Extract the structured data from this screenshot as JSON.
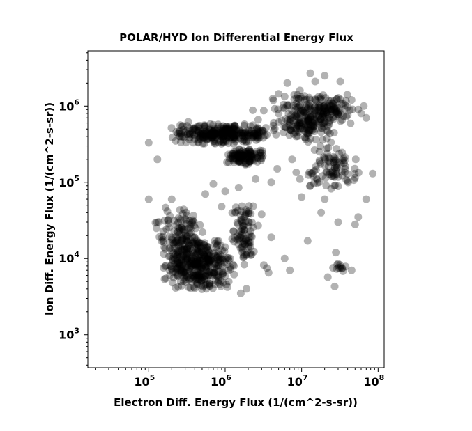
{
  "chart_data": {
    "type": "scatter",
    "title": "POLAR/HYD  Ion Differential Energy Flux",
    "xlabel": "Electron Diff. Energy Flux (1/(cm^2-s-sr))",
    "ylabel": "Ion Diff. Energy Flux (1/(cm^2-s-sr))",
    "xscale": "log",
    "yscale": "log",
    "xlim": [
      16000,
      120000000
    ],
    "ylim": [
      370,
      5300000
    ],
    "x_ticks": [
      {
        "base": "10",
        "exp": "5"
      },
      {
        "base": "10",
        "exp": "6"
      },
      {
        "base": "10",
        "exp": "7"
      },
      {
        "base": "10",
        "exp": "8"
      }
    ],
    "y_ticks": [
      {
        "base": "10",
        "exp": "3"
      },
      {
        "base": "10",
        "exp": "4"
      },
      {
        "base": "10",
        "exp": "5"
      },
      {
        "base": "10",
        "exp": "6"
      }
    ],
    "grid": false,
    "marker_color": "#000000",
    "marker_alpha": 0.3,
    "clusters": [
      {
        "x": [
          180000,
          5000000
        ],
        "y": [
          310000,
          600000
        ],
        "n": 320
      },
      {
        "x": [
          900000,
          3500000
        ],
        "y": [
          170000,
          280000
        ],
        "n": 120
      },
      {
        "x": [
          4000000,
          30000000
        ],
        "y": [
          300000,
          1500000
        ],
        "n": 220
      },
      {
        "x": [
          12000000,
          50000000
        ],
        "y": [
          500000,
          1600000
        ],
        "n": 80
      },
      {
        "x": [
          150000,
          1400000
        ],
        "y": [
          3500,
          20000
        ],
        "n": 380
      },
      {
        "x": [
          120000,
          600000
        ],
        "y": [
          7000,
          50000
        ],
        "n": 140
      },
      {
        "x": [
          1200000,
          2600000
        ],
        "y": [
          8000,
          60000
        ],
        "n": 90
      },
      {
        "x": [
          11000000,
          60000000
        ],
        "y": [
          70000,
          350000
        ],
        "n": 90
      },
      {
        "x": [
          25000000,
          40000000
        ],
        "y": [
          6000,
          9000
        ],
        "n": 12
      }
    ],
    "points": [
      [
        100000,
        330000
      ],
      [
        130000,
        200000
      ],
      [
        100000,
        60000
      ],
      [
        200000,
        60000
      ],
      [
        280000,
        550000
      ],
      [
        330000,
        620000
      ],
      [
        2300000,
        880000
      ],
      [
        2700000,
        660000
      ],
      [
        3200000,
        870000
      ],
      [
        4200000,
        1250000
      ],
      [
        6000000,
        1330000
      ],
      [
        6500000,
        2000000
      ],
      [
        8000000,
        1400000
      ],
      [
        9500000,
        1600000
      ],
      [
        11000000,
        1200000
      ],
      [
        13000000,
        2700000
      ],
      [
        15000000,
        2100000
      ],
      [
        20000000,
        2500000
      ],
      [
        32000000,
        2100000
      ],
      [
        45000000,
        1200000
      ],
      [
        55000000,
        900000
      ],
      [
        60000000,
        800000
      ],
      [
        65000000,
        1000000
      ],
      [
        70000000,
        700000
      ],
      [
        85000000,
        130000
      ],
      [
        70000000,
        60000
      ],
      [
        55000000,
        35000
      ],
      [
        50000000,
        28000
      ],
      [
        30000000,
        30000
      ],
      [
        28000000,
        12000
      ],
      [
        12000000,
        17000
      ],
      [
        6000000,
        10000
      ],
      [
        7000000,
        7000
      ],
      [
        45000000,
        7000
      ],
      [
        27000000,
        4300
      ],
      [
        22000000,
        5700
      ],
      [
        4000000,
        19000
      ],
      [
        3000000,
        38000
      ],
      [
        2700000,
        27000
      ],
      [
        3500000,
        7500
      ],
      [
        3700000,
        6500
      ],
      [
        3200000,
        8200
      ],
      [
        1900000,
        4000
      ],
      [
        1600000,
        3500
      ],
      [
        4800000,
        150000
      ],
      [
        7500000,
        200000
      ],
      [
        8500000,
        135000
      ],
      [
        9500000,
        110000
      ],
      [
        13000000,
        90000
      ],
      [
        17000000,
        100000
      ],
      [
        20000000,
        60000
      ],
      [
        18000000,
        40000
      ],
      [
        10000000,
        64000
      ],
      [
        4000000,
        100000
      ],
      [
        2500000,
        110000
      ],
      [
        1500000,
        85000
      ],
      [
        1000000,
        76000
      ],
      [
        700000,
        95000
      ],
      [
        550000,
        70000
      ],
      [
        900000,
        48000
      ]
    ]
  }
}
